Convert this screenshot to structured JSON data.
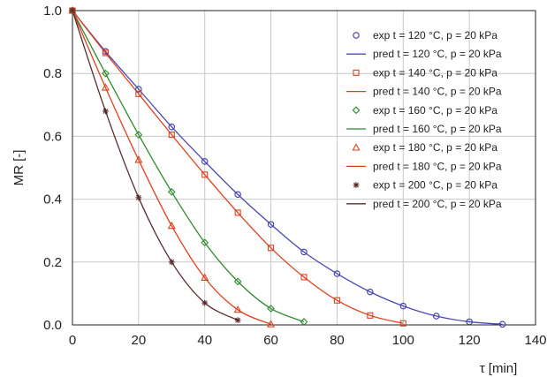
{
  "chart_data": {
    "type": "line",
    "title": "",
    "xlabel": "τ [min]",
    "ylabel": "MR [-]",
    "xlim": [
      0,
      140
    ],
    "ylim": [
      0.0,
      1.0
    ],
    "xticks": [
      0,
      20,
      40,
      60,
      80,
      100,
      120,
      140
    ],
    "yticks": [
      0.0,
      0.2,
      0.4,
      0.6,
      0.8,
      1.0
    ],
    "xtick_labels": [
      "0",
      "20",
      "40",
      "60",
      "80",
      "100",
      "120",
      "140"
    ],
    "ytick_labels": [
      "0.0",
      "0.2",
      "0.4",
      "0.6",
      "0.8",
      "1.0"
    ],
    "grid": true,
    "legend_position": "top-right",
    "series": [
      {
        "name": "exp t = 120 °C, p = 20 kPa",
        "kind": "markers",
        "marker": "circle",
        "color": "#3c3caa",
        "x": [
          0,
          10,
          20,
          30,
          40,
          50,
          60,
          70,
          80,
          90,
          100,
          110,
          120,
          130
        ],
        "y": [
          1.0,
          0.87,
          0.75,
          0.63,
          0.52,
          0.415,
          0.32,
          0.232,
          0.163,
          0.105,
          0.06,
          0.028,
          0.01,
          0.002
        ]
      },
      {
        "name": "pred t = 120 °C, p = 20 kPa",
        "kind": "line",
        "color": "#4a4ab4",
        "x": [
          0,
          10,
          20,
          30,
          40,
          50,
          60,
          70,
          80,
          90,
          100,
          110,
          120,
          130
        ],
        "y": [
          1.0,
          0.87,
          0.75,
          0.63,
          0.52,
          0.415,
          0.32,
          0.232,
          0.163,
          0.105,
          0.06,
          0.028,
          0.01,
          0.002
        ]
      },
      {
        "name": "exp t = 140 °C, p = 20 kPa",
        "kind": "markers",
        "marker": "square",
        "color": "#e0401e",
        "x": [
          0,
          10,
          20,
          30,
          40,
          50,
          60,
          70,
          80,
          90,
          100
        ],
        "y": [
          1.0,
          0.865,
          0.735,
          0.605,
          0.478,
          0.357,
          0.245,
          0.152,
          0.078,
          0.03,
          0.005
        ]
      },
      {
        "name": "pred t = 140 °C, p = 20 kPa",
        "kind": "line",
        "color": "#e0401e",
        "x": [
          0,
          10,
          20,
          30,
          40,
          50,
          60,
          70,
          80,
          90,
          100
        ],
        "y": [
          1.0,
          0.865,
          0.735,
          0.605,
          0.478,
          0.357,
          0.245,
          0.152,
          0.078,
          0.03,
          0.005
        ]
      },
      {
        "name": "exp t = 160 °C, p = 20 kPa",
        "kind": "markers",
        "marker": "diamond",
        "color": "#2e8a2e",
        "x": [
          0,
          10,
          20,
          30,
          40,
          50,
          60,
          70
        ],
        "y": [
          1.0,
          0.8,
          0.605,
          0.423,
          0.262,
          0.138,
          0.052,
          0.01
        ]
      },
      {
        "name": "pred t = 160 °C, p = 20 kPa",
        "kind": "line",
        "color": "#2e8a2e",
        "x": [
          0,
          10,
          20,
          30,
          40,
          50,
          60,
          70
        ],
        "y": [
          1.0,
          0.8,
          0.605,
          0.423,
          0.262,
          0.138,
          0.052,
          0.01
        ]
      },
      {
        "name": "exp t = 180 °C, p = 20 kPa",
        "kind": "markers",
        "marker": "triangle",
        "color": "#e0401e",
        "x": [
          0,
          10,
          20,
          30,
          40,
          50,
          60
        ],
        "y": [
          1.0,
          0.755,
          0.525,
          0.315,
          0.15,
          0.048,
          0.002
        ]
      },
      {
        "name": "pred t = 180 °C, p = 20 kPa",
        "kind": "line",
        "color": "#e0401e",
        "x": [
          0,
          10,
          20,
          30,
          40,
          50,
          60
        ],
        "y": [
          1.0,
          0.755,
          0.525,
          0.315,
          0.15,
          0.048,
          0.002
        ]
      },
      {
        "name": "exp t = 200 °C, p = 20 kPa",
        "kind": "markers",
        "marker": "asterisk",
        "color": "#5a2a2a",
        "x": [
          0,
          10,
          20,
          30,
          40,
          50
        ],
        "y": [
          1.0,
          0.68,
          0.405,
          0.2,
          0.07,
          0.015
        ]
      },
      {
        "name": "pred t = 200 °C, p = 20 kPa",
        "kind": "line",
        "color": "#5a2a2a",
        "x": [
          0,
          10,
          20,
          30,
          40,
          50
        ],
        "y": [
          1.0,
          0.68,
          0.405,
          0.2,
          0.07,
          0.015
        ]
      }
    ]
  }
}
